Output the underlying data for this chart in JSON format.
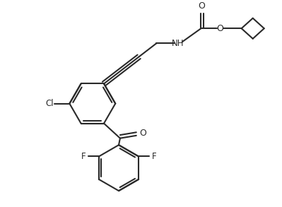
{
  "bg_color": "#ffffff",
  "line_color": "#2a2a2a",
  "line_width": 1.5,
  "figsize": [
    3.99,
    2.93
  ],
  "dpi": 100,
  "xlim": [
    0,
    10.0
  ],
  "ylim": [
    0,
    7.5
  ]
}
